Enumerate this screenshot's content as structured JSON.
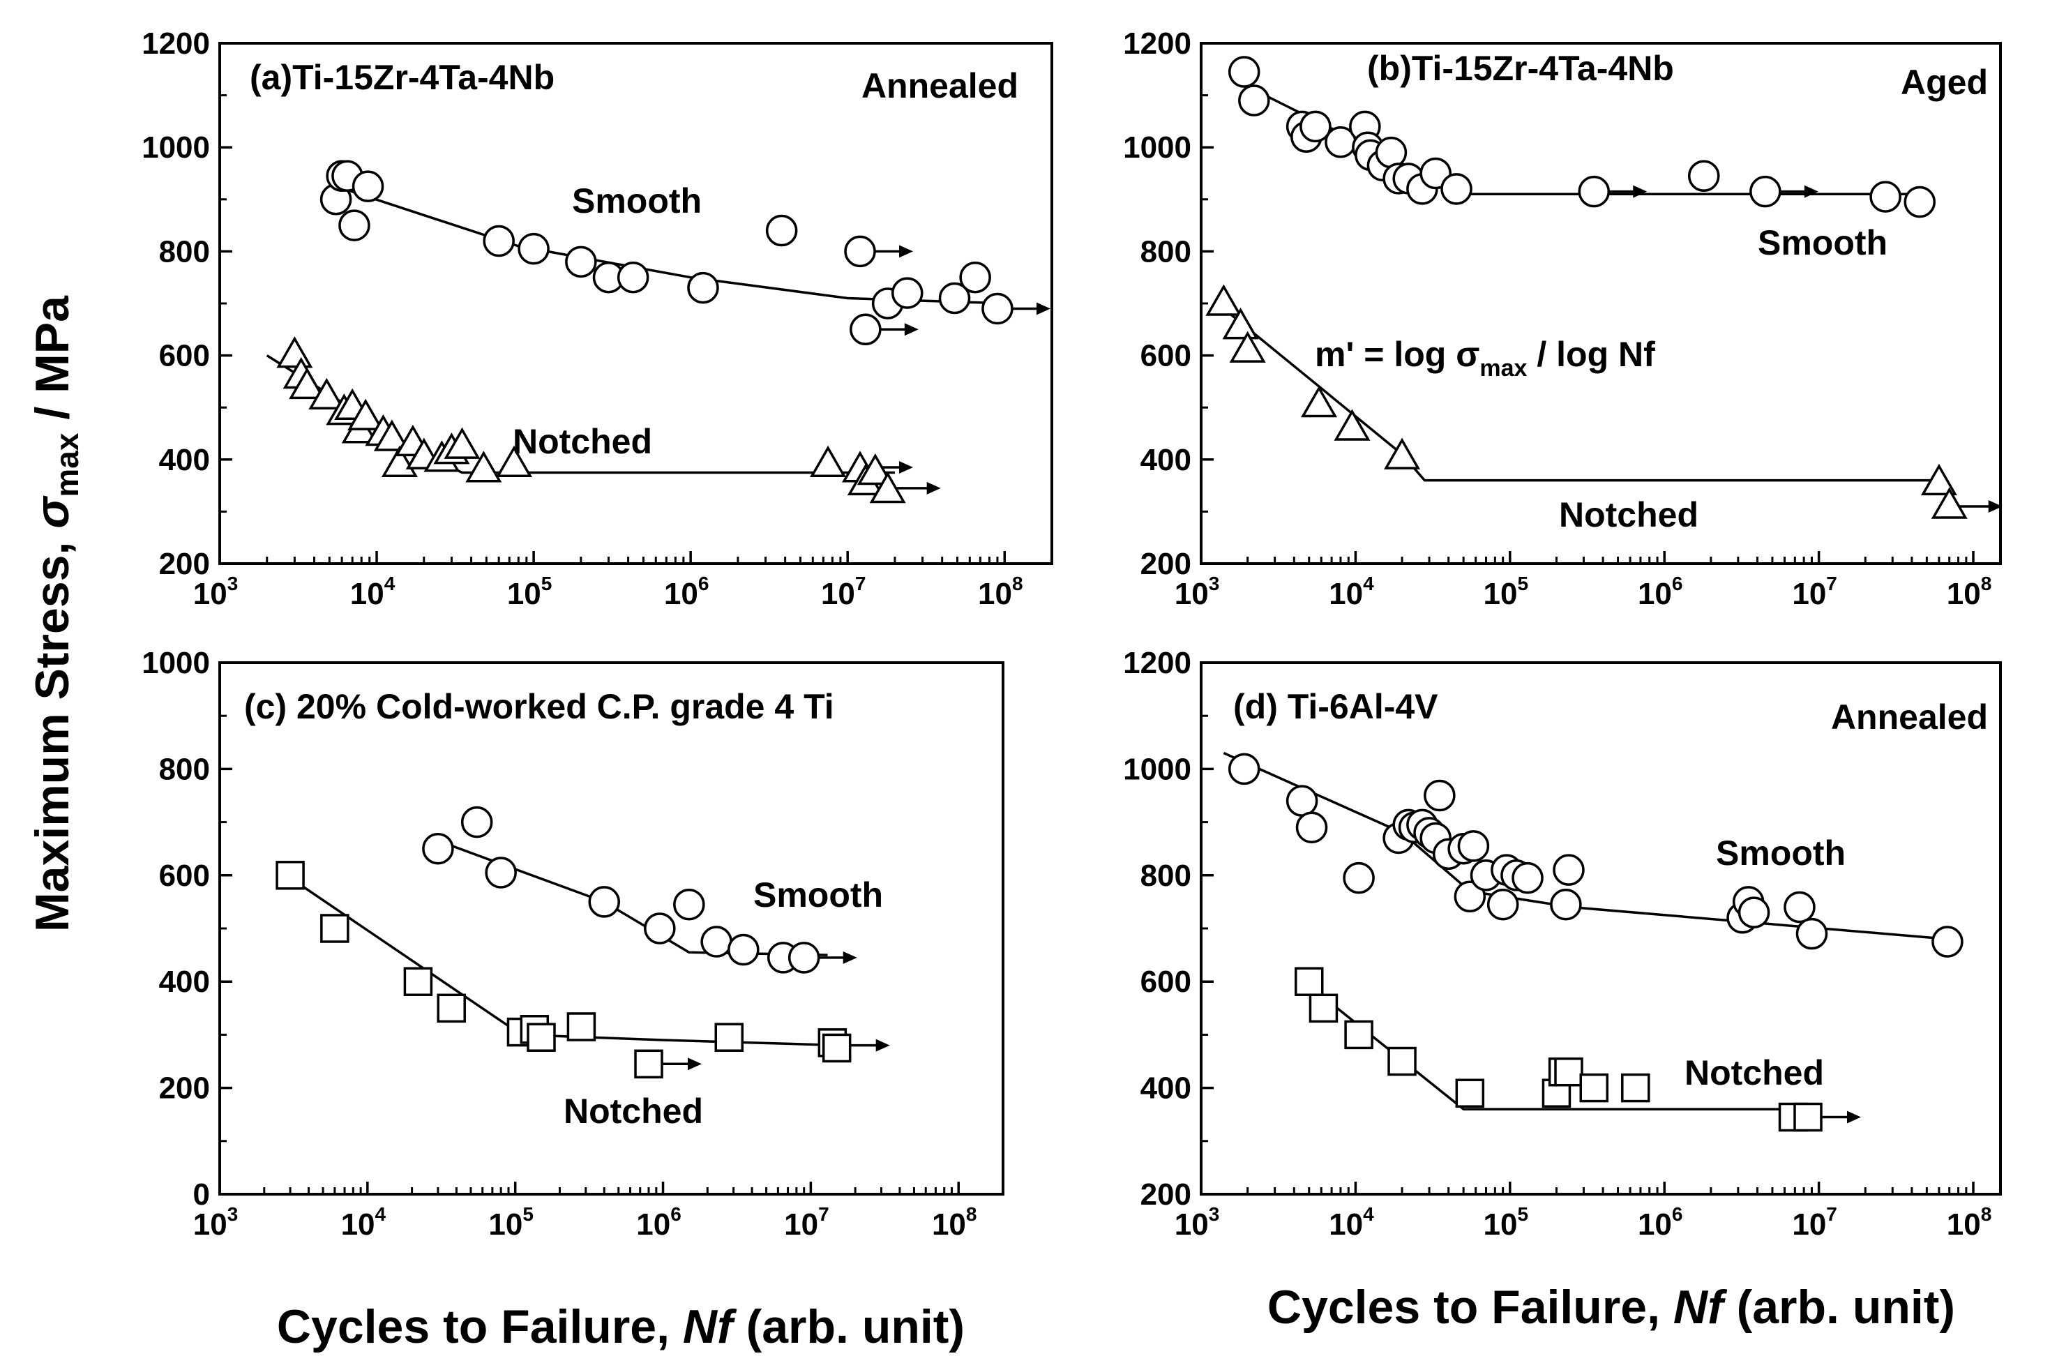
{
  "figure": {
    "ylabel": "Maximum Stress, σmax / MPa",
    "ylabel_parts": [
      "Maximum Stress, ",
      "σ",
      "max",
      " / MPa"
    ],
    "xlabel": "Cycles to Failure, Nf (arb. unit)",
    "xlabel_parts": [
      "Cycles to Failure, ",
      "Nf",
      " (arb. unit)"
    ]
  },
  "chart_data": [
    {
      "id": "a",
      "type": "scatter",
      "title": "(a)Ti-15Zr-4Ta-4Nb",
      "condition": "Annealed",
      "xscale": "log",
      "xlim": [
        1000,
        200000000
      ],
      "ylim": [
        200,
        1200
      ],
      "yticks": [
        200,
        400,
        600,
        800,
        1000,
        1200
      ],
      "xtick_exponents": [
        3,
        4,
        5,
        6,
        7,
        8
      ],
      "series": [
        {
          "name": "Smooth",
          "marker": "circle",
          "points": [
            [
              5500,
              900
            ],
            [
              6000,
              945
            ],
            [
              6500,
              945
            ],
            [
              7200,
              850
            ],
            [
              8800,
              925
            ],
            [
              60000,
              820
            ],
            [
              100000,
              805
            ],
            [
              200000,
              780
            ],
            [
              300000,
              750
            ],
            [
              430000,
              750
            ],
            [
              1200000,
              730
            ],
            [
              3800000,
              840
            ],
            [
              12000000,
              800
            ],
            [
              13000000,
              650
            ],
            [
              18000000,
              700
            ],
            [
              24000000,
              720
            ],
            [
              48000000,
              710
            ],
            [
              65000000,
              750
            ],
            [
              90000000,
              690
            ]
          ],
          "runouts": [
            [
              12000000,
              800
            ],
            [
              13000000,
              650
            ],
            [
              90000000,
              690
            ]
          ],
          "fit": [
            [
              5500,
              925
            ],
            [
              80000,
              810
            ],
            [
              1000000,
              750
            ],
            [
              10000000,
              710
            ],
            [
              100000000,
              700
            ]
          ]
        },
        {
          "name": "Notched",
          "marker": "triangle",
          "points": [
            [
              3000,
              600
            ],
            [
              3300,
              560
            ],
            [
              3600,
              540
            ],
            [
              4800,
              520
            ],
            [
              6200,
              490
            ],
            [
              7000,
              500
            ],
            [
              7800,
              455
            ],
            [
              8500,
              480
            ],
            [
              11000,
              450
            ],
            [
              12500,
              440
            ],
            [
              14000,
              390
            ],
            [
              17000,
              430
            ],
            [
              20000,
              405
            ],
            [
              26000,
              400
            ],
            [
              30000,
              415
            ],
            [
              35000,
              425
            ],
            [
              48000,
              380
            ],
            [
              75000,
              390
            ],
            [
              7500000,
              390
            ],
            [
              12000000,
              380
            ],
            [
              13000000,
              355
            ],
            [
              15000000,
              375
            ],
            [
              18000000,
              340
            ]
          ],
          "runouts": [
            [
              12000000,
              385
            ],
            [
              18000000,
              345
            ]
          ],
          "fit": [
            [
              2000,
              600
            ],
            [
              5000,
              525
            ],
            [
              20000,
              410
            ],
            [
              35000,
              375
            ],
            [
              20000000,
              375
            ]
          ]
        }
      ]
    },
    {
      "id": "b",
      "type": "scatter",
      "title": "(b)Ti-15Zr-4Ta-4Nb",
      "condition": "Aged",
      "annotation": "m' = log σmax / log Nf",
      "annotation_parts": [
        "m' = log σ",
        "max",
        " / log Nf"
      ],
      "xscale": "log",
      "xlim": [
        1000,
        150000000
      ],
      "ylim": [
        200,
        1200
      ],
      "yticks": [
        200,
        400,
        600,
        800,
        1000,
        1200
      ],
      "xtick_exponents": [
        3,
        4,
        5,
        6,
        7,
        8
      ],
      "series": [
        {
          "name": "Smooth",
          "marker": "circle",
          "points": [
            [
              1900,
              1145
            ],
            [
              2200,
              1090
            ],
            [
              4500,
              1040
            ],
            [
              4800,
              1020
            ],
            [
              5500,
              1040
            ],
            [
              8000,
              1010
            ],
            [
              11500,
              1040
            ],
            [
              12000,
              1000
            ],
            [
              12500,
              985
            ],
            [
              15000,
              965
            ],
            [
              17000,
              990
            ],
            [
              19000,
              940
            ],
            [
              22000,
              940
            ],
            [
              27000,
              920
            ],
            [
              33000,
              950
            ],
            [
              45000,
              920
            ],
            [
              350000,
              915
            ],
            [
              1800000,
              945
            ],
            [
              4500000,
              915
            ],
            [
              27000000,
              905
            ],
            [
              45000000,
              895
            ]
          ],
          "runouts": [
            [
              350000,
              915
            ],
            [
              4500000,
              915
            ]
          ],
          "fit": [
            [
              1900,
              1120
            ],
            [
              9000,
              1020
            ],
            [
              50000,
              910
            ],
            [
              45000000,
              910
            ]
          ]
        },
        {
          "name": "Notched",
          "marker": "triangle",
          "points": [
            [
              1400,
              700
            ],
            [
              1800,
              655
            ],
            [
              2000,
              610
            ],
            [
              5800,
              505
            ],
            [
              9500,
              460
            ],
            [
              20000,
              405
            ],
            [
              60000000,
              355
            ],
            [
              70000000,
              310
            ]
          ],
          "runouts": [
            [
              70000000,
              310
            ]
          ],
          "fit": [
            [
              1400,
              690
            ],
            [
              20000,
              410
            ],
            [
              28000,
              360
            ],
            [
              65000000,
              360
            ]
          ]
        }
      ]
    },
    {
      "id": "c",
      "type": "scatter",
      "title": "(c) 20% Cold-worked C.P. grade 4 Ti",
      "condition": "",
      "xscale": "log",
      "xlim": [
        1000,
        200000000
      ],
      "ylim": [
        0,
        1000
      ],
      "yticks": [
        0,
        200,
        400,
        600,
        800,
        1000
      ],
      "xtick_exponents": [
        3,
        4,
        5,
        6,
        7,
        8
      ],
      "series": [
        {
          "name": "Smooth",
          "marker": "circle",
          "points": [
            [
              30000,
              650
            ],
            [
              55000,
              700
            ],
            [
              80000,
              605
            ],
            [
              400000,
              550
            ],
            [
              950000,
              500
            ],
            [
              1500000,
              545
            ],
            [
              2300000,
              475
            ],
            [
              3500000,
              460
            ],
            [
              6500000,
              445
            ],
            [
              9000000,
              445
            ]
          ],
          "runouts": [
            [
              9000000,
              445
            ]
          ],
          "fit": [
            [
              30000,
              665
            ],
            [
              400000,
              550
            ],
            [
              1500000,
              455
            ],
            [
              13000000,
              450
            ]
          ]
        },
        {
          "name": "Notched",
          "marker": "square",
          "points": [
            [
              3000,
              600
            ],
            [
              6000,
              500
            ],
            [
              22000,
              400
            ],
            [
              37000,
              350
            ],
            [
              110000,
              305
            ],
            [
              135000,
              310
            ],
            [
              150000,
              295
            ],
            [
              280000,
              315
            ],
            [
              800000,
              245
            ],
            [
              2800000,
              295
            ],
            [
              14000000,
              285
            ],
            [
              15000000,
              275
            ]
          ],
          "runouts": [
            [
              800000,
              245
            ],
            [
              15000000,
              280
            ]
          ],
          "fit": [
            [
              3000,
              595
            ],
            [
              110000,
              300
            ],
            [
              1000000,
              290
            ],
            [
              16000000,
              280
            ]
          ]
        }
      ]
    },
    {
      "id": "d",
      "type": "scatter",
      "title": "(d) Ti-6Al-4V",
      "condition": "Annealed",
      "xscale": "log",
      "xlim": [
        1000,
        150000000
      ],
      "ylim": [
        200,
        1200
      ],
      "yticks": [
        200,
        400,
        600,
        800,
        1000,
        1200
      ],
      "xtick_exponents": [
        3,
        4,
        5,
        6,
        7,
        8
      ],
      "series": [
        {
          "name": "Smooth",
          "marker": "circle",
          "points": [
            [
              1900,
              1000
            ],
            [
              4500,
              940
            ],
            [
              5200,
              890
            ],
            [
              10500,
              795
            ],
            [
              19000,
              870
            ],
            [
              22000,
              895
            ],
            [
              24000,
              890
            ],
            [
              27000,
              895
            ],
            [
              30000,
              880
            ],
            [
              33000,
              870
            ],
            [
              35000,
              950
            ],
            [
              40000,
              840
            ],
            [
              50000,
              850
            ],
            [
              55000,
              760
            ],
            [
              58000,
              855
            ],
            [
              70000,
              800
            ],
            [
              90000,
              745
            ],
            [
              95000,
              810
            ],
            [
              110000,
              800
            ],
            [
              130000,
              795
            ],
            [
              230000,
              745
            ],
            [
              240000,
              810
            ],
            [
              3200000,
              720
            ],
            [
              3500000,
              750
            ],
            [
              3800000,
              730
            ],
            [
              7500000,
              740
            ],
            [
              9000000,
              690
            ],
            [
              68000000,
              675
            ]
          ],
          "runouts": [],
          "fit": [
            [
              1400,
              1030
            ],
            [
              20000,
              880
            ],
            [
              55000,
              770
            ],
            [
              250000,
              740
            ],
            [
              68000000,
              680
            ]
          ]
        },
        {
          "name": "Notched",
          "marker": "square",
          "points": [
            [
              5000,
              600
            ],
            [
              6200,
              550
            ],
            [
              10500,
              500
            ],
            [
              20000,
              450
            ],
            [
              55000,
              390
            ],
            [
              200000,
              390
            ],
            [
              220000,
              430
            ],
            [
              240000,
              430
            ],
            [
              350000,
              400
            ],
            [
              650000,
              400
            ],
            [
              6800000,
              345
            ],
            [
              8500000,
              345
            ]
          ],
          "runouts": [
            [
              8500000,
              345
            ]
          ],
          "fit": [
            [
              4200,
              610
            ],
            [
              50000,
              360
            ],
            [
              10000000,
              360
            ]
          ]
        }
      ]
    }
  ],
  "series_labels": {
    "a": {
      "Smooth": "Smooth",
      "Notched": "Notched"
    },
    "b": {
      "Smooth": "Smooth",
      "Notched": "Notched"
    },
    "c": {
      "Smooth": "Smooth",
      "Notched": "Notched"
    },
    "d": {
      "Smooth": "Smooth",
      "Notched": "Notched"
    }
  }
}
